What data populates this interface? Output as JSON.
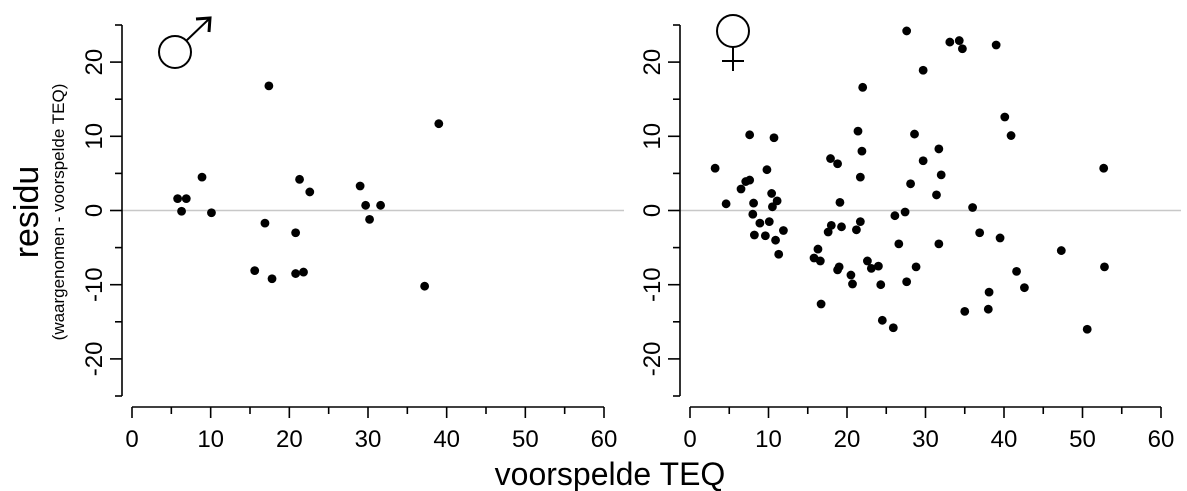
{
  "figure": {
    "ylabel": "residu",
    "ylabel_sub": "(waargenomen - voorspelde TEQ)",
    "xlabel": "voorspelde TEQ"
  },
  "chart_data": [
    {
      "type": "scatter",
      "panel": "male",
      "symbol": "male-symbol",
      "xlim": [
        0,
        60
      ],
      "ylim": [
        -25,
        25
      ],
      "xticks": [
        "0",
        "10",
        "20",
        "30",
        "40",
        "50",
        "60"
      ],
      "yticks": [
        "-20",
        "-10",
        "0",
        "10",
        "20"
      ],
      "reference_line_y": 0,
      "points": [
        [
          5.8,
          1.6
        ],
        [
          6.3,
          -0.1
        ],
        [
          6.9,
          1.6
        ],
        [
          8.9,
          4.5
        ],
        [
          10.1,
          -0.3
        ],
        [
          15.6,
          -8.1
        ],
        [
          16.9,
          -1.7
        ],
        [
          17.4,
          16.8
        ],
        [
          17.8,
          -9.2
        ],
        [
          20.8,
          -8.5
        ],
        [
          20.8,
          -3.0
        ],
        [
          21.3,
          4.2
        ],
        [
          21.8,
          -8.3
        ],
        [
          22.6,
          2.5
        ],
        [
          29.0,
          3.3
        ],
        [
          29.7,
          0.7
        ],
        [
          30.2,
          -1.2
        ],
        [
          31.6,
          0.7
        ],
        [
          37.2,
          -10.2
        ],
        [
          39.0,
          11.7
        ]
      ]
    },
    {
      "type": "scatter",
      "panel": "female",
      "symbol": "female-symbol",
      "xlim": [
        0,
        60
      ],
      "ylim": [
        -25,
        25
      ],
      "xticks": [
        "0",
        "10",
        "20",
        "30",
        "40",
        "50",
        "60"
      ],
      "yticks": [
        "-20",
        "-10",
        "0",
        "10",
        "20"
      ],
      "reference_line_y": 0,
      "points": [
        [
          3.2,
          5.7
        ],
        [
          4.6,
          0.9
        ],
        [
          6.5,
          2.9
        ],
        [
          7.1,
          3.9
        ],
        [
          7.6,
          4.1
        ],
        [
          7.6,
          10.2
        ],
        [
          8.0,
          -0.5
        ],
        [
          8.1,
          1.0
        ],
        [
          8.2,
          -3.3
        ],
        [
          8.9,
          -1.7
        ],
        [
          9.6,
          -3.4
        ],
        [
          9.8,
          5.5
        ],
        [
          10.1,
          -1.5
        ],
        [
          10.4,
          2.3
        ],
        [
          10.5,
          0.5
        ],
        [
          10.7,
          9.8
        ],
        [
          10.9,
          -4.0
        ],
        [
          11.1,
          1.3
        ],
        [
          11.3,
          -5.9
        ],
        [
          11.9,
          -2.7
        ],
        [
          15.8,
          -6.4
        ],
        [
          16.3,
          -5.2
        ],
        [
          16.6,
          -6.8
        ],
        [
          16.7,
          -12.6
        ],
        [
          17.6,
          -2.9
        ],
        [
          17.9,
          7.0
        ],
        [
          18.0,
          -2.0
        ],
        [
          18.8,
          -8.0
        ],
        [
          18.8,
          6.3
        ],
        [
          19.0,
          -7.6
        ],
        [
          19.1,
          1.1
        ],
        [
          19.3,
          -2.2
        ],
        [
          20.5,
          -8.7
        ],
        [
          20.7,
          -9.9
        ],
        [
          21.2,
          -2.6
        ],
        [
          21.4,
          10.7
        ],
        [
          21.7,
          4.5
        ],
        [
          21.7,
          -1.5
        ],
        [
          21.9,
          8.0
        ],
        [
          22.0,
          16.6
        ],
        [
          22.6,
          -6.8
        ],
        [
          23.1,
          -7.8
        ],
        [
          24.0,
          -7.5
        ],
        [
          24.3,
          -10.0
        ],
        [
          24.5,
          -14.8
        ],
        [
          25.9,
          -15.8
        ],
        [
          26.1,
          -0.7
        ],
        [
          26.6,
          -4.5
        ],
        [
          27.4,
          -0.2
        ],
        [
          27.6,
          24.2
        ],
        [
          27.6,
          -9.6
        ],
        [
          28.1,
          3.6
        ],
        [
          28.6,
          10.3
        ],
        [
          28.8,
          -7.6
        ],
        [
          29.7,
          18.9
        ],
        [
          29.7,
          6.7
        ],
        [
          31.4,
          2.1
        ],
        [
          31.7,
          8.3
        ],
        [
          31.7,
          -4.5
        ],
        [
          32.0,
          4.8
        ],
        [
          33.1,
          22.7
        ],
        [
          34.3,
          22.9
        ],
        [
          34.7,
          21.8
        ],
        [
          35.0,
          -13.6
        ],
        [
          36.0,
          0.4
        ],
        [
          36.9,
          -3.0
        ],
        [
          38.0,
          -13.3
        ],
        [
          38.1,
          -11.0
        ],
        [
          39.0,
          22.3
        ],
        [
          39.5,
          -3.7
        ],
        [
          40.1,
          12.6
        ],
        [
          40.9,
          10.1
        ],
        [
          41.6,
          -8.2
        ],
        [
          42.6,
          -10.4
        ],
        [
          47.3,
          -5.4
        ],
        [
          50.6,
          -16.0
        ],
        [
          52.7,
          5.7
        ],
        [
          52.8,
          -7.6
        ]
      ]
    }
  ]
}
